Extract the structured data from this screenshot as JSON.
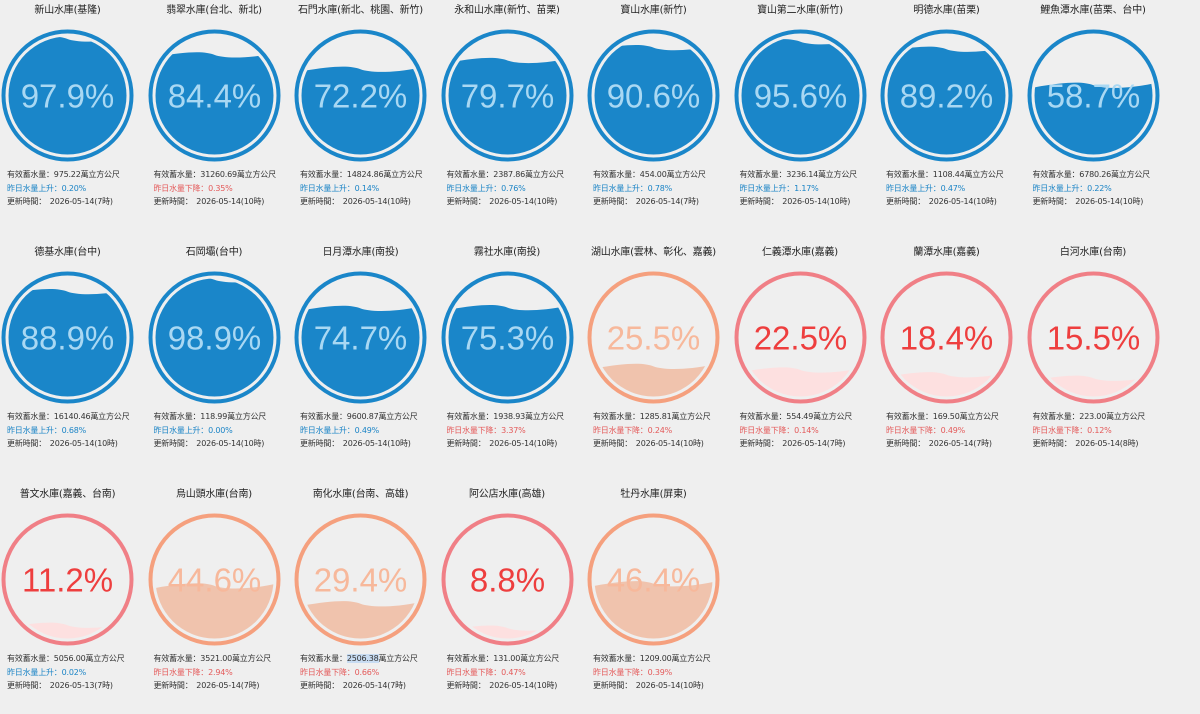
{
  "labels": {
    "storage_prefix": "有效蓄水量：",
    "storage_unit": "萬立方公尺",
    "up_prefix": "昨日水量上升：",
    "down_prefix": "昨日水量下降：",
    "update_prefix": "更新時間：　"
  },
  "colors": {
    "blue_stroke": "#1a86c9",
    "blue_fill": "#1a86c9",
    "blue_text": "#a9d8f3",
    "orange_stroke": "#f5a07e",
    "orange_fill": "#f0c3ad",
    "orange_text": "#f7b89b",
    "red_stroke": "#f07f86",
    "red_fill": "#fde0e0",
    "red_text": "#ee3e3e"
  },
  "reservoirs": [
    {
      "name": "新山水庫(基隆)",
      "percent": 97.9,
      "percent_text": "97.9%",
      "level": "blue",
      "storage": "975.22",
      "change_dir": "up",
      "change": "0.20%",
      "updated": "2026-05-14(7時)"
    },
    {
      "name": "翡翠水庫(台北、新北)",
      "percent": 84.4,
      "percent_text": "84.4%",
      "level": "blue",
      "storage": "31260.69",
      "change_dir": "down",
      "change": "0.35%",
      "updated": "2026-05-14(10時)"
    },
    {
      "name": "石門水庫(新北、桃園、新竹)",
      "percent": 72.2,
      "percent_text": "72.2%",
      "level": "blue",
      "storage": "14824.86",
      "change_dir": "up",
      "change": "0.14%",
      "updated": "2026-05-14(10時)"
    },
    {
      "name": "永和山水庫(新竹、苗栗)",
      "percent": 79.7,
      "percent_text": "79.7%",
      "level": "blue",
      "storage": "2387.86",
      "change_dir": "up",
      "change": "0.76%",
      "updated": "2026-05-14(10時)"
    },
    {
      "name": "寶山水庫(新竹)",
      "percent": 90.6,
      "percent_text": "90.6%",
      "level": "blue",
      "storage": "454.00",
      "change_dir": "up",
      "change": "0.78%",
      "updated": "2026-05-14(7時)"
    },
    {
      "name": "寶山第二水庫(新竹)",
      "percent": 95.6,
      "percent_text": "95.6%",
      "level": "blue",
      "storage": "3236.14",
      "change_dir": "up",
      "change": "1.17%",
      "updated": "2026-05-14(10時)"
    },
    {
      "name": "明德水庫(苗栗)",
      "percent": 89.2,
      "percent_text": "89.2%",
      "level": "blue",
      "storage": "1108.44",
      "change_dir": "up",
      "change": "0.47%",
      "updated": "2026-05-14(10時)"
    },
    {
      "name": "鯉魚潭水庫(苗栗、台中)",
      "percent": 58.7,
      "percent_text": "58.7%",
      "level": "blue",
      "storage": "6780.26",
      "change_dir": "up",
      "change": "0.22%",
      "updated": "2026-05-14(10時)"
    },
    {
      "name": "德基水庫(台中)",
      "percent": 88.9,
      "percent_text": "88.9%",
      "level": "blue",
      "storage": "16140.46",
      "change_dir": "up",
      "change": "0.68%",
      "updated": "2026-05-14(10時)"
    },
    {
      "name": "石岡壩(台中)",
      "percent": 98.9,
      "percent_text": "98.9%",
      "level": "blue",
      "storage": "118.99",
      "change_dir": "up",
      "change": "0.00%",
      "updated": "2026-05-14(10時)"
    },
    {
      "name": "日月潭水庫(南投)",
      "percent": 74.7,
      "percent_text": "74.7%",
      "level": "blue",
      "storage": "9600.87",
      "change_dir": "up",
      "change": "0.49%",
      "updated": "2026-05-14(10時)"
    },
    {
      "name": "霧社水庫(南投)",
      "percent": 75.3,
      "percent_text": "75.3%",
      "level": "blue",
      "storage": "1938.93",
      "change_dir": "down",
      "change": "3.37%",
      "updated": "2026-05-14(10時)"
    },
    {
      "name": "湖山水庫(雲林、彰化、嘉義)",
      "percent": 25.5,
      "percent_text": "25.5%",
      "level": "orange",
      "storage": "1285.81",
      "change_dir": "down",
      "change": "0.24%",
      "updated": "2026-05-14(10時)"
    },
    {
      "name": "仁義潭水庫(嘉義)",
      "percent": 22.5,
      "percent_text": "22.5%",
      "level": "red",
      "storage": "554.49",
      "change_dir": "down",
      "change": "0.14%",
      "updated": "2026-05-14(7時)"
    },
    {
      "name": "蘭潭水庫(嘉義)",
      "percent": 18.4,
      "percent_text": "18.4%",
      "level": "red",
      "storage": "169.50",
      "change_dir": "down",
      "change": "0.49%",
      "updated": "2026-05-14(7時)"
    },
    {
      "name": "白河水庫(台南)",
      "percent": 15.5,
      "percent_text": "15.5%",
      "level": "red",
      "storage": "223.00",
      "change_dir": "down",
      "change": "0.12%",
      "updated": "2026-05-14(8時)"
    },
    {
      "name": "普文水庫(嘉義、台南)",
      "percent": 11.2,
      "percent_text": "11.2%",
      "level": "red",
      "storage": "5056.00",
      "change_dir": "up",
      "change": "0.02%",
      "updated": "2026-05-13(7時)"
    },
    {
      "name": "烏山頭水庫(台南)",
      "percent": 44.6,
      "percent_text": "44.6%",
      "level": "orange",
      "storage": "3521.00",
      "change_dir": "down",
      "change": "2.94%",
      "updated": "2026-05-14(7時)"
    },
    {
      "name": "南化水庫(台南、高雄)",
      "percent": 29.4,
      "percent_text": "29.4%",
      "level": "orange",
      "storage": "2506.38",
      "change_dir": "down",
      "change": "0.66%",
      "updated": "2026-05-14(7時)",
      "highlight_storage": true
    },
    {
      "name": "阿公店水庫(高雄)",
      "percent": 8.8,
      "percent_text": "8.8%",
      "level": "red",
      "storage": "131.00",
      "change_dir": "down",
      "change": "0.47%",
      "updated": "2026-05-14(10時)"
    },
    {
      "name": "牡丹水庫(屏東)",
      "percent": 46.4,
      "percent_text": "46.4%",
      "level": "orange",
      "storage": "1209.00",
      "change_dir": "down",
      "change": "0.39%",
      "updated": "2026-05-14(10時)"
    }
  ]
}
